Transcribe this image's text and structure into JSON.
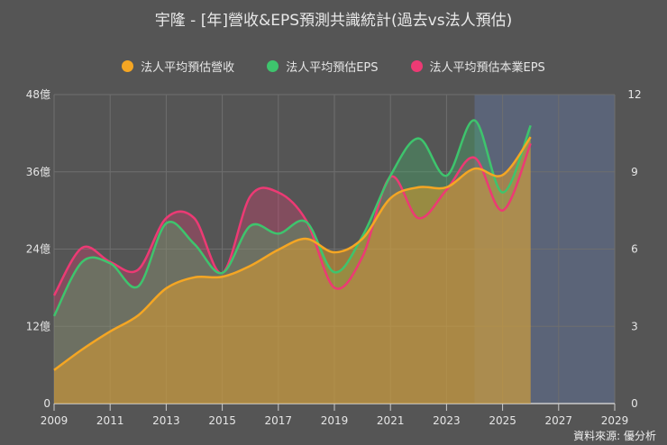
{
  "chart_data": {
    "type": "area",
    "title": "宇隆 - [年]營收&EPS預測共識統計(過去vs法人預估)",
    "x": [
      2009,
      2010,
      2011,
      2012,
      2013,
      2014,
      2015,
      2016,
      2017,
      2018,
      2019,
      2020,
      2021,
      2022,
      2023,
      2024,
      2025,
      2026
    ],
    "xlim": [
      2009,
      2029
    ],
    "xticks": [
      "2009",
      "2011",
      "2013",
      "2015",
      "2017",
      "2019",
      "2021",
      "2023",
      "2025",
      "2027",
      "2029"
    ],
    "y_left": {
      "lim": [
        0,
        48
      ],
      "ticks": [
        "0",
        "12億",
        "24億",
        "36億",
        "48億"
      ]
    },
    "y_right": {
      "lim": [
        0,
        12
      ],
      "ticks": [
        "0",
        "3",
        "6",
        "9",
        "12"
      ]
    },
    "forecast_region": [
      2024,
      2029
    ],
    "grid": true,
    "legend_position": "top",
    "series": [
      {
        "name": "法人平均預估營收",
        "axis": "left",
        "color": "#f5a623",
        "values": [
          5.2,
          8.4,
          11.2,
          13.7,
          17.9,
          19.6,
          19.7,
          21.4,
          23.9,
          25.6,
          23.5,
          25.6,
          31.9,
          33.6,
          33.6,
          36.5,
          35.5,
          41.4
        ]
      },
      {
        "name": "法人平均預估EPS",
        "axis": "right",
        "color": "#3ec46d",
        "values": [
          3.4,
          5.5,
          5.45,
          4.55,
          7.0,
          6.2,
          5.07,
          6.9,
          6.6,
          7.05,
          5.1,
          6.5,
          8.85,
          10.3,
          8.85,
          11.0,
          8.2,
          10.8
        ]
      },
      {
        "name": "法人平均預估本業EPS",
        "axis": "right",
        "color": "#ec3a74",
        "values": [
          4.2,
          6.05,
          5.5,
          5.2,
          7.2,
          7.2,
          5.07,
          8.05,
          8.2,
          7.1,
          4.5,
          5.7,
          8.8,
          7.2,
          8.3,
          9.55,
          7.5,
          10.1
        ]
      }
    ]
  },
  "colors": {
    "background": "#555555",
    "forecast_shade": "#5b6478",
    "grid": "#6e6e6e"
  },
  "source": "資料來源: 優分析"
}
